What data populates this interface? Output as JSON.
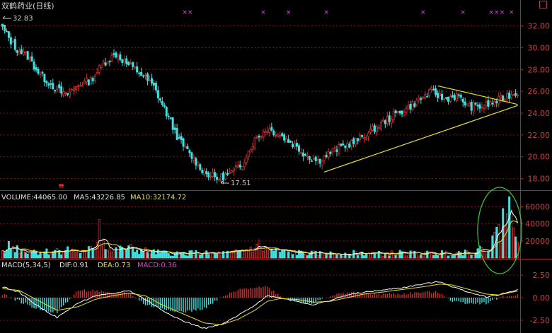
{
  "header": {
    "title": "双鹤药业(日线)"
  },
  "price_panel": {
    "high_label": "32.83",
    "low_label": "17.51",
    "y_ticks": [
      "32.00",
      "30.00",
      "28.00",
      "26.00",
      "24.00",
      "22.00",
      "20.00",
      "18.00"
    ],
    "marker_glyph": "×",
    "marker_color": "#e040e0",
    "bottom_marker_glyph": "≡",
    "bottom_marker_color": "#ff4040",
    "trendline_color": "#e8e030",
    "up_color": "#d03030",
    "down_color": "#40e0e0"
  },
  "volume_panel": {
    "labels": {
      "volume": "VOLUME:44065.00",
      "ma5": "MA5:43226.85",
      "ma10": "MA10:32174.72"
    },
    "y_ticks": [
      "60000",
      "40000",
      "20000"
    ],
    "ma5_color": "#ffffff",
    "ma10_color": "#e8e030",
    "highlight_color": "#40c040"
  },
  "macd_panel": {
    "labels": {
      "name": "MACD(5,34,5)",
      "dif": "DIF:0.91",
      "dea": "DEA:0.73",
      "macd": "MACD:0.36"
    },
    "y_ticks": [
      "2.50",
      "0.00",
      "-2.50"
    ],
    "dif_color": "#ffffff",
    "dea_color": "#e8e030",
    "macd_label_color": "#e040e0"
  },
  "chart_data": {
    "type": "candlestick",
    "title": "双鹤药业(日线)",
    "price_range": [
      17.0,
      33.4
    ],
    "volume_range": [
      0,
      72000
    ],
    "macd_range": [
      -3.6,
      3.6
    ],
    "annotations": {
      "high": 32.83,
      "low": 17.51
    },
    "last_values": {
      "volume": 44065.0,
      "ma5": 43226.85,
      "ma10": 32174.72,
      "dif": 0.91,
      "dea": 0.73,
      "macd": 0.36
    },
    "close_path": [
      [
        0,
        31.8
      ],
      [
        6,
        30.0
      ],
      [
        12,
        29.2
      ],
      [
        18,
        27.5
      ],
      [
        24,
        26.5
      ],
      [
        30,
        25.6
      ],
      [
        36,
        26.6
      ],
      [
        42,
        27.0
      ],
      [
        48,
        28.6
      ],
      [
        54,
        29.4
      ],
      [
        60,
        28.4
      ],
      [
        66,
        27.6
      ],
      [
        72,
        26.4
      ],
      [
        78,
        24.0
      ],
      [
        84,
        21.5
      ],
      [
        90,
        20.0
      ],
      [
        96,
        18.6
      ],
      [
        102,
        18.0
      ],
      [
        108,
        18.4
      ],
      [
        114,
        19.4
      ],
      [
        120,
        21.6
      ],
      [
        126,
        22.6
      ],
      [
        132,
        22.0
      ],
      [
        138,
        21.2
      ],
      [
        144,
        20.2
      ],
      [
        150,
        19.6
      ],
      [
        156,
        20.4
      ],
      [
        162,
        21.0
      ],
      [
        168,
        21.4
      ],
      [
        174,
        22.2
      ],
      [
        180,
        23.0
      ],
      [
        186,
        23.8
      ],
      [
        192,
        24.4
      ],
      [
        198,
        25.2
      ],
      [
        204,
        26.0
      ],
      [
        210,
        25.3
      ],
      [
        216,
        25.6
      ],
      [
        222,
        24.6
      ],
      [
        228,
        24.6
      ],
      [
        234,
        25.0
      ],
      [
        240,
        25.6
      ],
      [
        245,
        25.9
      ]
    ],
    "trendlines": [
      {
        "from": [
          153,
          18.6
        ],
        "to": [
          245,
          24.7
        ]
      },
      {
        "from": [
          207,
          26.5
        ],
        "to": [
          245,
          24.8
        ]
      }
    ],
    "markers": [
      {
        "index": 88,
        "glyph": "××"
      },
      {
        "index": 124,
        "glyph": "×"
      },
      {
        "index": 136,
        "glyph": "×"
      },
      {
        "index": 154,
        "glyph": "×"
      },
      {
        "index": 200,
        "glyph": "×"
      },
      {
        "index": 219,
        "glyph": "×"
      },
      {
        "index": 235,
        "glyph": "×××"
      },
      {
        "index": 242,
        "glyph": "×"
      }
    ],
    "volume_path": [
      [
        0,
        16000
      ],
      [
        10,
        9000
      ],
      [
        20,
        7000
      ],
      [
        30,
        10000
      ],
      [
        40,
        6000
      ],
      [
        46,
        24000
      ],
      [
        52,
        8000
      ],
      [
        60,
        11000
      ],
      [
        70,
        7000
      ],
      [
        80,
        5000
      ],
      [
        90,
        6000
      ],
      [
        100,
        5000
      ],
      [
        110,
        6000
      ],
      [
        120,
        12000
      ],
      [
        130,
        8000
      ],
      [
        140,
        6000
      ],
      [
        150,
        5000
      ],
      [
        160,
        5000
      ],
      [
        170,
        6000
      ],
      [
        180,
        5000
      ],
      [
        190,
        6000
      ],
      [
        200,
        5000
      ],
      [
        210,
        6000
      ],
      [
        220,
        7000
      ],
      [
        228,
        9000
      ],
      [
        232,
        15000
      ],
      [
        236,
        30000
      ],
      [
        240,
        52000
      ],
      [
        245,
        44000
      ]
    ],
    "volume_spikes": [
      {
        "index": 46,
        "value": 45000
      },
      {
        "index": 122,
        "value": 21000
      },
      {
        "index": 233,
        "value": 26000
      },
      {
        "index": 238,
        "value": 58000
      },
      {
        "index": 240,
        "value": 52000
      }
    ],
    "dif_path": [
      [
        0,
        1.2
      ],
      [
        8,
        0.6
      ],
      [
        16,
        -0.8
      ],
      [
        26,
        -2.2
      ],
      [
        36,
        -0.6
      ],
      [
        44,
        0.2
      ],
      [
        52,
        0.4
      ],
      [
        60,
        0.8
      ],
      [
        68,
        -0.2
      ],
      [
        76,
        -1.4
      ],
      [
        86,
        -2.6
      ],
      [
        96,
        -3.4
      ],
      [
        104,
        -3.0
      ],
      [
        112,
        -2.0
      ],
      [
        120,
        -0.8
      ],
      [
        126,
        0.2
      ],
      [
        132,
        0.0
      ],
      [
        140,
        -0.4
      ],
      [
        148,
        -0.8
      ],
      [
        156,
        -0.3
      ],
      [
        164,
        0.3
      ],
      [
        172,
        0.6
      ],
      [
        180,
        0.8
      ],
      [
        190,
        1.1
      ],
      [
        200,
        1.5
      ],
      [
        208,
        1.8
      ],
      [
        214,
        1.2
      ],
      [
        222,
        0.6
      ],
      [
        230,
        0.1
      ],
      [
        236,
        0.3
      ],
      [
        245,
        0.9
      ]
    ],
    "dea_path": [
      [
        0,
        1.0
      ],
      [
        8,
        0.8
      ],
      [
        16,
        -0.2
      ],
      [
        26,
        -1.4
      ],
      [
        36,
        -1.0
      ],
      [
        44,
        -0.2
      ],
      [
        52,
        0.2
      ],
      [
        60,
        0.5
      ],
      [
        68,
        0.2
      ],
      [
        76,
        -0.8
      ],
      [
        86,
        -1.8
      ],
      [
        96,
        -2.8
      ],
      [
        104,
        -3.0
      ],
      [
        112,
        -2.4
      ],
      [
        120,
        -1.4
      ],
      [
        126,
        -0.4
      ],
      [
        132,
        -0.1
      ],
      [
        140,
        -0.2
      ],
      [
        148,
        -0.5
      ],
      [
        156,
        -0.4
      ],
      [
        164,
        0.0
      ],
      [
        172,
        0.4
      ],
      [
        180,
        0.6
      ],
      [
        190,
        0.9
      ],
      [
        200,
        1.2
      ],
      [
        208,
        1.5
      ],
      [
        214,
        1.4
      ],
      [
        222,
        0.9
      ],
      [
        230,
        0.4
      ],
      [
        236,
        0.3
      ],
      [
        245,
        0.73
      ]
    ]
  }
}
